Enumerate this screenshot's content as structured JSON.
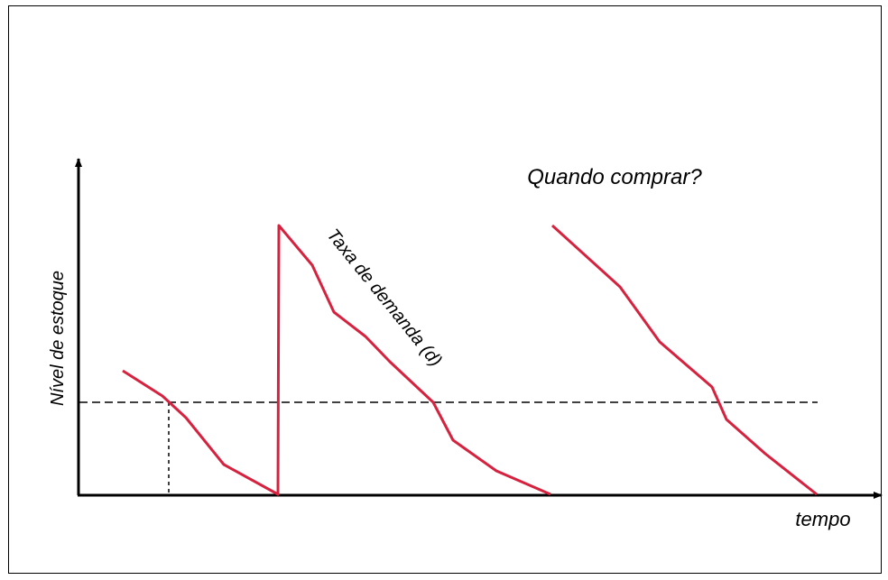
{
  "labels": {
    "y_axis": "Nível de estoque",
    "x_axis": "tempo",
    "question": "Quando comprar?",
    "demand_rate": "Taxa de demanda (d)"
  },
  "colors": {
    "stock_line": "#d7223f",
    "axis": "#000000",
    "reorder_line": "#000000",
    "background": "#ffffff"
  }
}
